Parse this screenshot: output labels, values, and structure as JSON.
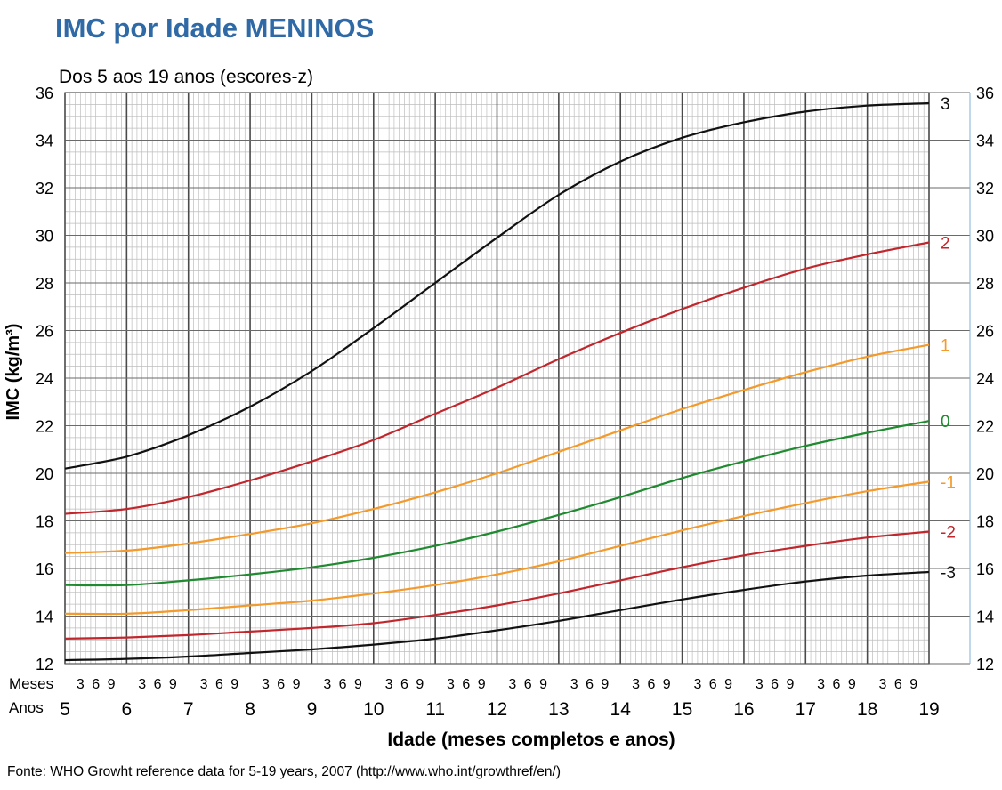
{
  "page": {
    "title": "IMC por Idade MENINOS",
    "subtitle": "Dos 5 aos 19 anos (escores-z)",
    "source": "Fonte: WHO Growht reference data for 5-19 years, 2007 (http://www.who.int/growthref/en/)"
  },
  "chart_data": {
    "type": "line",
    "title": "IMC por Idade MENINOS",
    "subtitle": "Dos 5 aos 19 anos (escores-z)",
    "xlabel": "Idade (meses completos e anos)",
    "ylabel": "IMC (kg/m³)",
    "x_row_labels": {
      "months": "Meses",
      "years": "Anos"
    },
    "month_tick_labels": [
      "3",
      "6",
      "9"
    ],
    "xlim": [
      5,
      19
    ],
    "ylim": [
      12,
      36
    ],
    "x_ticks": [
      5,
      6,
      7,
      8,
      9,
      10,
      11,
      12,
      13,
      14,
      15,
      16,
      17,
      18,
      19
    ],
    "y_ticks": [
      12,
      14,
      16,
      18,
      20,
      22,
      24,
      26,
      28,
      30,
      32,
      34,
      36
    ],
    "grid": true,
    "x": [
      5,
      6,
      7,
      8,
      9,
      10,
      11,
      12,
      13,
      14,
      15,
      16,
      17,
      18,
      19
    ],
    "series": [
      {
        "name": "3",
        "color": "#111111",
        "values": [
          20.2,
          20.7,
          21.6,
          22.8,
          24.3,
          26.1,
          28.0,
          29.9,
          31.7,
          33.1,
          34.1,
          34.75,
          35.2,
          35.45,
          35.55
        ]
      },
      {
        "name": "2",
        "color": "#c0272d",
        "values": [
          18.3,
          18.5,
          19.0,
          19.7,
          20.5,
          21.4,
          22.5,
          23.6,
          24.8,
          25.9,
          26.9,
          27.8,
          28.6,
          29.2,
          29.7
        ]
      },
      {
        "name": "1",
        "color": "#f39a2b",
        "values": [
          16.65,
          16.75,
          17.05,
          17.45,
          17.9,
          18.5,
          19.2,
          20.0,
          20.9,
          21.8,
          22.7,
          23.5,
          24.25,
          24.9,
          25.4
        ]
      },
      {
        "name": "0",
        "color": "#1f8a2f",
        "values": [
          15.3,
          15.3,
          15.5,
          15.75,
          16.05,
          16.45,
          16.95,
          17.55,
          18.25,
          19.0,
          19.8,
          20.5,
          21.15,
          21.7,
          22.2
        ]
      },
      {
        "name": "-1",
        "color": "#f39a2b",
        "values": [
          14.1,
          14.1,
          14.25,
          14.45,
          14.65,
          14.95,
          15.3,
          15.75,
          16.3,
          16.95,
          17.6,
          18.2,
          18.75,
          19.25,
          19.65
        ]
      },
      {
        "name": "-2",
        "color": "#c0272d",
        "values": [
          13.05,
          13.1,
          13.2,
          13.35,
          13.5,
          13.7,
          14.05,
          14.45,
          14.95,
          15.5,
          16.05,
          16.55,
          16.95,
          17.3,
          17.55
        ]
      },
      {
        "name": "-3",
        "color": "#111111",
        "values": [
          12.15,
          12.2,
          12.3,
          12.45,
          12.6,
          12.8,
          13.05,
          13.4,
          13.8,
          14.25,
          14.7,
          15.1,
          15.45,
          15.7,
          15.85
        ]
      }
    ]
  }
}
